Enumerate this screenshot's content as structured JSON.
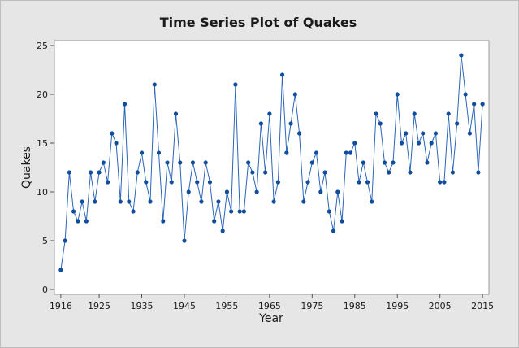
{
  "chart_data": {
    "type": "line",
    "title": "Time Series Plot of Quakes",
    "xlabel": "Year",
    "ylabel": "Quakes",
    "x_ticks": [
      1916,
      1925,
      1935,
      1945,
      1955,
      1965,
      1975,
      1985,
      1995,
      2005,
      2015
    ],
    "y_ticks": [
      0,
      5,
      10,
      15,
      20,
      25
    ],
    "xlim": [
      1914.5,
      2016.5
    ],
    "ylim": [
      -0.5,
      25.5
    ],
    "grid": false,
    "marker": "circle",
    "colors": {
      "line": "#2b65b8",
      "marker": "#0f4e9e",
      "plot_background": "#ffffff",
      "figure_background": "#e6e6e6"
    },
    "series": [
      {
        "x": [
          1916,
          1917,
          1918,
          1919,
          1920,
          1921,
          1922,
          1923,
          1924,
          1925,
          1926,
          1927,
          1928,
          1929,
          1930,
          1931,
          1932,
          1933,
          1934,
          1935,
          1936,
          1937,
          1938,
          1939,
          1940,
          1941,
          1942,
          1943,
          1944,
          1945,
          1946,
          1947,
          1948,
          1949,
          1950,
          1951,
          1952,
          1953,
          1954,
          1955,
          1956,
          1957,
          1958,
          1959,
          1960,
          1961,
          1962,
          1963,
          1964,
          1965,
          1966,
          1967,
          1968,
          1969,
          1970,
          1971,
          1972,
          1973,
          1974,
          1975,
          1976,
          1977,
          1978,
          1979,
          1980,
          1981,
          1982,
          1983,
          1984,
          1985,
          1986,
          1987,
          1988,
          1989,
          1990,
          1991,
          1992,
          1993,
          1994,
          1995,
          1996,
          1997,
          1998,
          1999,
          2000,
          2001,
          2002,
          2003,
          2004,
          2005,
          2006,
          2007,
          2008,
          2009,
          2010,
          2011,
          2012,
          2013,
          2014,
          2015
        ],
        "y": [
          2,
          5,
          12,
          8,
          7,
          9,
          7,
          12,
          9,
          12,
          13,
          11,
          16,
          15,
          9,
          19,
          9,
          8,
          12,
          14,
          11,
          9,
          21,
          14,
          7,
          13,
          11,
          18,
          13,
          5,
          10,
          13,
          11,
          9,
          13,
          11,
          7,
          9,
          6,
          10,
          8,
          21,
          8,
          8,
          13,
          12,
          10,
          17,
          12,
          18,
          9,
          11,
          22,
          14,
          17,
          20,
          16,
          9,
          11,
          13,
          14,
          10,
          12,
          8,
          6,
          10,
          7,
          14,
          14,
          15,
          11,
          13,
          11,
          9,
          18,
          17,
          13,
          12,
          13,
          20,
          15,
          16,
          12,
          18,
          15,
          16,
          13,
          15,
          16,
          11,
          11,
          18,
          12,
          17,
          24,
          20,
          16,
          19,
          12,
          19
        ]
      }
    ]
  }
}
